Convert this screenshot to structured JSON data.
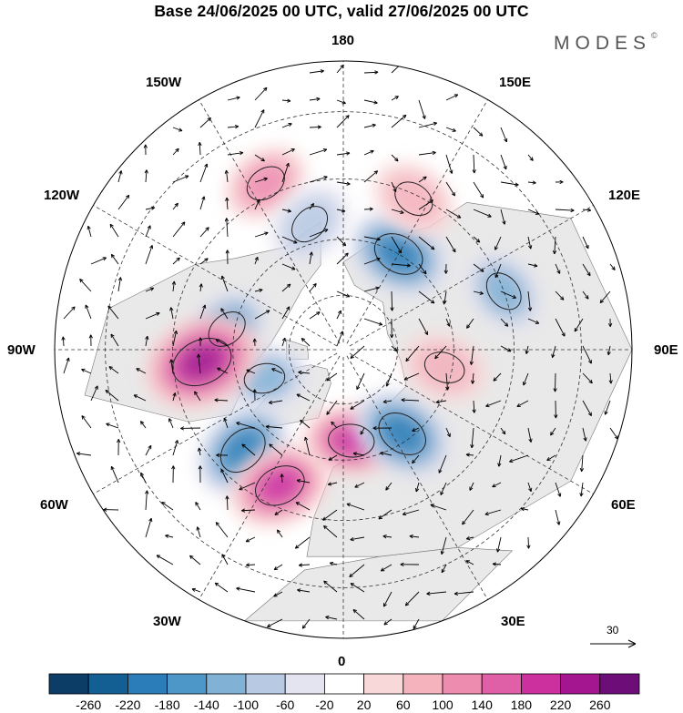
{
  "title": "Base 24/06/2025 00 UTC, valid 27/06/2025 00 UTC",
  "logo": {
    "text": "MODES",
    "mark": "©"
  },
  "longitude_labels": {
    "n": "180",
    "s": "0",
    "w": "90W",
    "e": "90E",
    "w150": "150W",
    "e150": "150E",
    "w120": "120W",
    "e120": "120E",
    "w60": "60W",
    "e60": "60E",
    "w30": "30W",
    "e30": "30E"
  },
  "reference_vector": {
    "value": "30"
  },
  "colorbar": {
    "ticks": [
      "-260",
      "-220",
      "-180",
      "-140",
      "-100",
      "-60",
      "-20",
      "20",
      "60",
      "100",
      "140",
      "180",
      "220",
      "260"
    ],
    "colors": [
      "#0b3d66",
      "#135f94",
      "#2a7db8",
      "#4d97c8",
      "#82b1d6",
      "#b8c9e3",
      "#e4e3f0",
      "#ffffff",
      "#f8d8d8",
      "#f4b3bd",
      "#ee8cb0",
      "#e060a8",
      "#cc2f9e",
      "#a41590",
      "#6c0d78"
    ]
  },
  "map": {
    "projection": "north-polar-stereographic",
    "land_color": "#e9e9e9",
    "ocean_color": "#ffffff",
    "anomaly_centers": [
      {
        "name": "north-america-low-1",
        "lon": -100,
        "lat": 58,
        "value": -160
      },
      {
        "name": "baffin-low",
        "lon": -70,
        "lat": 67,
        "value": -120
      },
      {
        "name": "hudson-high",
        "lon": -85,
        "lat": 52,
        "value": 240
      },
      {
        "name": "greenland-sea-low",
        "lon": -45,
        "lat": 52,
        "value": -200
      },
      {
        "name": "atlantic-high",
        "lon": -25,
        "lat": 50,
        "value": 200
      },
      {
        "name": "scandinavia-high",
        "lon": 5,
        "lat": 65,
        "value": 180
      },
      {
        "name": "barents-low",
        "lon": 35,
        "lat": 62,
        "value": -200
      },
      {
        "name": "siberia-high",
        "lon": 80,
        "lat": 62,
        "value": 80
      },
      {
        "name": "east-siberia-low",
        "lon": 150,
        "lat": 60,
        "value": -200
      },
      {
        "name": "kamchatka-high",
        "lon": 155,
        "lat": 46,
        "value": 60
      },
      {
        "name": "alaska-high",
        "lon": -155,
        "lat": 42,
        "value": 100
      },
      {
        "name": "pacific-low",
        "lon": -165,
        "lat": 55,
        "value": -80
      },
      {
        "name": "central-asia-low",
        "lon": 110,
        "lat": 45,
        "value": -120
      }
    ]
  }
}
